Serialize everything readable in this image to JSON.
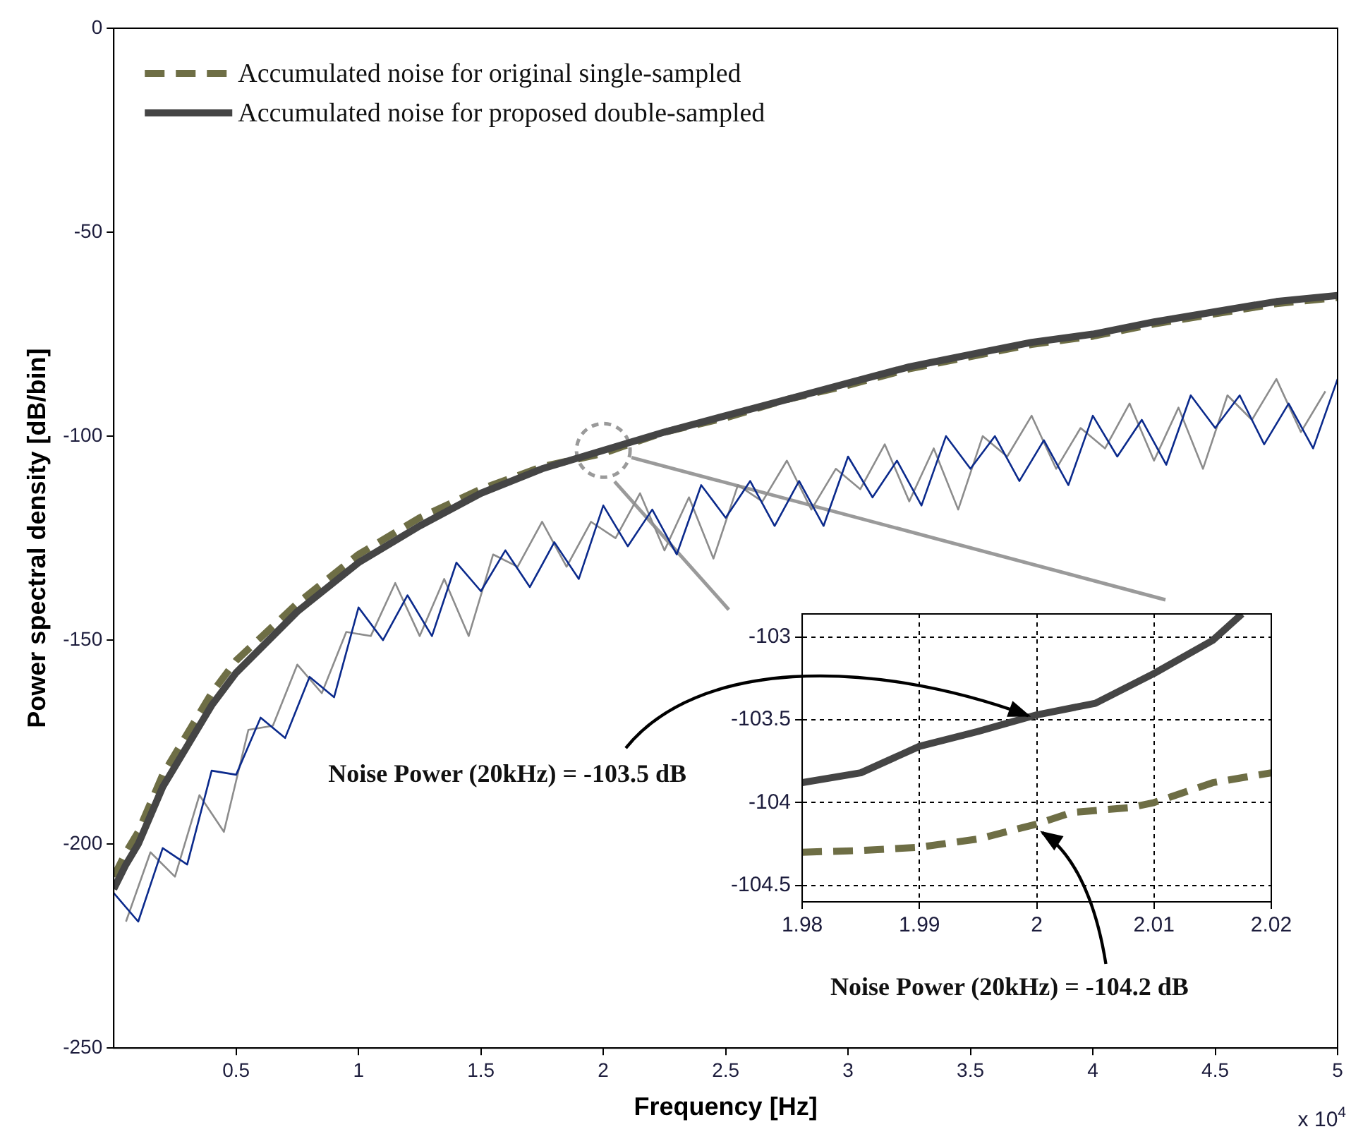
{
  "chart_data": [
    {
      "type": "line",
      "xlabel": "Frequency [Hz]",
      "ylabel": "Power spectral density [dB/bin]",
      "xlim": [
        0,
        5
      ],
      "xticks": [
        0.5,
        1,
        1.5,
        2,
        2.5,
        3,
        3.5,
        4,
        4.5,
        5
      ],
      "ylim": [
        -250,
        0
      ],
      "yticks": [
        -250,
        -200,
        -150,
        -100,
        -50,
        0
      ],
      "grid": false,
      "legend": "top left",
      "annotations": [
        "x 10$^{4}$"
      ],
      "series": [
        {
          "color": "#8c8c8c",
          "line_style": "solid",
          "x": [
            0.05,
            0.15,
            0.25,
            0.35,
            0.45,
            0.55,
            0.65,
            0.75,
            0.85,
            0.95,
            1.05,
            1.15,
            1.25,
            1.35,
            1.45,
            1.55,
            1.65,
            1.75,
            1.85,
            1.95,
            2.05,
            2.15,
            2.25,
            2.35,
            2.45,
            2.55,
            2.65,
            2.75,
            2.85,
            2.95,
            3.05,
            3.15,
            3.25,
            3.35,
            3.45,
            3.55,
            3.65,
            3.75,
            3.85,
            3.95,
            4.05,
            4.15,
            4.25,
            4.35,
            4.45,
            4.55,
            4.65,
            4.75,
            4.85,
            4.95
          ],
          "values": [
            -219,
            -202,
            -208,
            -188,
            -197,
            -172,
            -171,
            -156,
            -163,
            -148,
            -149,
            -136,
            -149,
            -135,
            -149,
            -129,
            -132,
            -121,
            -132,
            -121,
            -125,
            -114,
            -128,
            -115,
            -130,
            -112,
            -116,
            -106,
            -118,
            -108,
            -113,
            -102,
            -116,
            -103,
            -118,
            -100,
            -105,
            -95,
            -108,
            -98,
            -103,
            -92,
            -106,
            -93,
            -108,
            -90,
            -96,
            -86,
            -99,
            -89
          ]
        },
        {
          "color": "#0b2a8c",
          "line_style": "solid",
          "x": [
            0,
            0.1,
            0.2,
            0.3,
            0.4,
            0.5,
            0.6,
            0.7,
            0.8,
            0.9,
            1,
            1.1,
            1.2,
            1.3,
            1.4,
            1.5,
            1.6,
            1.7,
            1.8,
            1.9,
            2,
            2.1,
            2.2,
            2.3,
            2.4,
            2.5,
            2.6,
            2.7,
            2.8,
            2.9,
            3,
            3.1,
            3.2,
            3.3,
            3.4,
            3.5,
            3.6,
            3.7,
            3.8,
            3.9,
            4,
            4.1,
            4.2,
            4.3,
            4.4,
            4.5,
            4.6,
            4.7,
            4.8,
            4.9,
            5
          ],
          "values": [
            -212,
            -219,
            -201,
            -205,
            -182,
            -183,
            -169,
            -174,
            -159,
            -164,
            -142,
            -150,
            -139,
            -149,
            -131,
            -138,
            -128,
            -137,
            -126,
            -135,
            -117,
            -127,
            -118,
            -129,
            -112,
            -120,
            -111,
            -122,
            -111,
            -122,
            -105,
            -115,
            -106,
            -117,
            -100,
            -108,
            -100,
            -111,
            -101,
            -112,
            -95,
            -105,
            -96,
            -107,
            -90,
            -98,
            -90,
            -102,
            -92,
            -103,
            -86
          ]
        },
        {
          "name": "Accumulated noise for original single-sampled",
          "color": "#6e6e45",
          "line_style": "dashed",
          "x": [
            0,
            0.05,
            0.1,
            0.2,
            0.3,
            0.4,
            0.5,
            0.75,
            1,
            1.25,
            1.5,
            1.75,
            2,
            2.25,
            2.5,
            2.75,
            3,
            3.25,
            3.5,
            3.75,
            4,
            4.25,
            4.5,
            4.75,
            5
          ],
          "values": [
            -208,
            -202,
            -197,
            -183,
            -173,
            -163,
            -155,
            -141,
            -129,
            -120,
            -113,
            -107.5,
            -104.2,
            -99,
            -95.5,
            -91,
            -87.5,
            -83.5,
            -80.5,
            -77.5,
            -75.5,
            -72.5,
            -70,
            -67.5,
            -66
          ]
        },
        {
          "name": "Accumulated noise for proposed double-sampled",
          "color": "#454545",
          "line_style": "solid",
          "x": [
            0,
            0.05,
            0.1,
            0.2,
            0.3,
            0.4,
            0.5,
            0.75,
            1,
            1.25,
            1.5,
            1.75,
            2,
            2.25,
            2.5,
            2.75,
            3,
            3.25,
            3.5,
            3.75,
            4,
            4.25,
            4.5,
            4.75,
            5
          ],
          "values": [
            -211,
            -205,
            -200,
            -186,
            -176,
            -166,
            -158,
            -143,
            -131,
            -122,
            -114,
            -108,
            -103.5,
            -99,
            -95,
            -91,
            -87,
            -83,
            -80,
            -77,
            -75,
            -72,
            -69.5,
            -67,
            -65.5
          ]
        }
      ]
    },
    {
      "type": "line",
      "xlim": [
        1.98,
        2.02
      ],
      "xticks": [
        1.98,
        1.99,
        2,
        2.01,
        2.02
      ],
      "ylim": [
        -104.6,
        -102.86
      ],
      "yticks": [
        -104.5,
        -104,
        -103.5,
        -103
      ],
      "grid": true,
      "annotations": [
        {
          "text": "Noise Power (20kHz) = -103.5 dB",
          "x": 2,
          "y": -103.5
        },
        {
          "text": "Noise Power (20kHz) = -104.2 dB",
          "x": 2,
          "y": -104.13
        }
      ],
      "series": [
        {
          "color": "#6e6e45",
          "line_style": "dashed",
          "x": [
            1.98,
            1.985,
            1.99,
            1.995,
            2,
            2.003,
            2.008,
            2.01,
            2.015,
            2.02
          ],
          "values": [
            -104.3,
            -104.29,
            -104.27,
            -104.22,
            -104.13,
            -104.06,
            -104.03,
            -104,
            -103.88,
            -103.82
          ]
        },
        {
          "color": "#454545",
          "line_style": "solid",
          "x": [
            1.98,
            1.985,
            1.99,
            1.995,
            2,
            2.005,
            2.01,
            2.015,
            2.0175
          ],
          "values": [
            -103.88,
            -103.82,
            -103.66,
            -103.57,
            -103.47,
            -103.4,
            -103.22,
            -103.02,
            -102.86
          ]
        }
      ]
    }
  ]
}
